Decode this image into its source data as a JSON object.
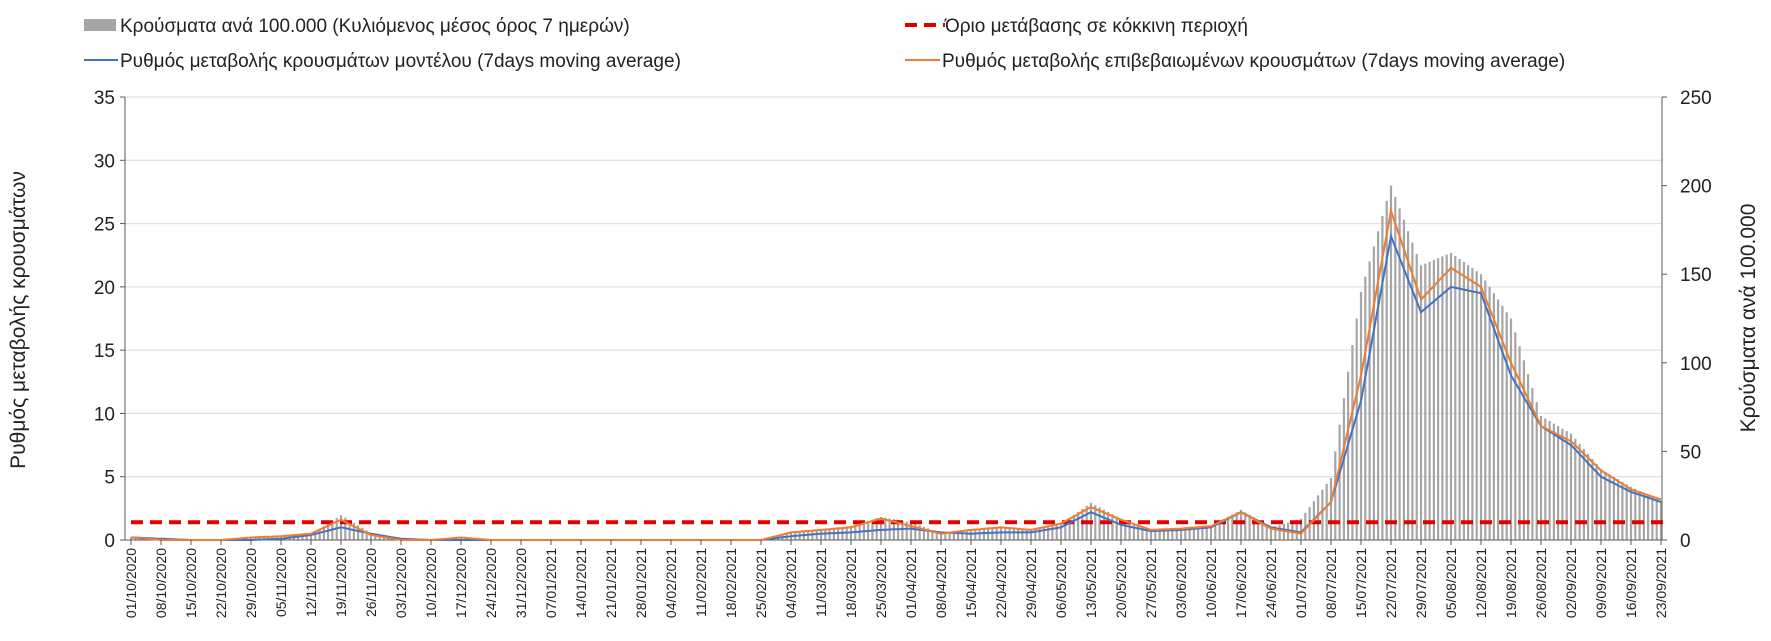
{
  "chart_data": {
    "type": "bar+line",
    "legend": {
      "items": [
        {
          "label": "Κρούσματα ανά 100.000 (Κυλιόμενος μέσος όρος 7 ημερών)",
          "kind": "bar",
          "color": "#a6a6a6"
        },
        {
          "label": "Όριο μετάβασης σε κόκκινη περιοχή",
          "kind": "dashed-line",
          "color": "#e00000"
        },
        {
          "label": "Ρυθμός μεταβολής κρουσμάτων μοντέλου (7days moving average)",
          "kind": "line",
          "color": "#4472c4"
        },
        {
          "label": "Ρυθμός μεταβολής επιβεβαιωμένων κρουσμάτων (7days moving average)",
          "kind": "line",
          "color": "#ed7d31"
        }
      ]
    },
    "y_left": {
      "label": "Ρυθμός μεταβολής κρουσμάτων",
      "min": 0,
      "max": 35,
      "ticks": [
        0,
        5,
        10,
        15,
        20,
        25,
        30,
        35
      ]
    },
    "y_right": {
      "label": "Κρούσματα ανά 100.000",
      "min": 0,
      "max": 250,
      "ticks": [
        0,
        50,
        100,
        150,
        200,
        250
      ]
    },
    "x_tick_labels": [
      "01/10/2020",
      "08/10/2020",
      "15/10/2020",
      "22/10/2020",
      "29/10/2020",
      "05/11/2020",
      "12/11/2020",
      "19/11/2020",
      "26/11/2020",
      "03/12/2020",
      "10/12/2020",
      "17/12/2020",
      "24/12/2020",
      "31/12/2020",
      "07/01/2021",
      "14/01/2021",
      "21/01/2021",
      "28/01/2021",
      "04/02/2021",
      "11/02/2021",
      "18/02/2021",
      "25/02/2021",
      "04/03/2021",
      "11/03/2021",
      "18/03/2021",
      "25/03/2021",
      "01/04/2021",
      "08/04/2021",
      "15/04/2021",
      "22/04/2021",
      "29/04/2021",
      "06/05/2021",
      "13/05/2021",
      "20/05/2021",
      "27/05/2021",
      "03/06/2021",
      "10/06/2021",
      "17/06/2021",
      "24/06/2021",
      "01/07/2021",
      "08/07/2021",
      "15/07/2021",
      "22/07/2021",
      "29/07/2021",
      "05/08/2021",
      "12/08/2021",
      "19/08/2021",
      "26/08/2021",
      "02/09/2021",
      "09/09/2021",
      "16/09/2021",
      "23/09/2021"
    ],
    "threshold_line": {
      "name": "Όριο μετάβασης σε κόκκινη περιοχή",
      "axis": "left",
      "value": 1.4
    },
    "series": [
      {
        "name": "Κρούσματα ανά 100.000 (Κυλιόμενος μέσος όρος 7 ημερών)",
        "type": "bar",
        "axis": "right",
        "color": "#a6a6a6",
        "weekly_values": [
          1.5,
          0.5,
          0.3,
          0.3,
          0.8,
          2.5,
          3,
          14,
          4,
          1,
          0,
          1,
          0,
          0,
          0,
          0,
          0,
          0,
          0,
          0,
          0,
          0,
          4,
          6,
          8,
          13,
          10,
          4,
          6,
          7,
          6,
          9,
          21,
          12,
          6,
          7,
          8,
          17,
          7,
          12,
          35,
          140,
          200,
          155,
          162,
          150,
          125,
          70,
          60,
          40,
          30,
          22
        ]
      },
      {
        "name": "Ρυθμός μεταβολής κρουσμάτων μοντέλου (7days moving average)",
        "type": "line",
        "axis": "left",
        "color": "#4472c4",
        "weekly_values": [
          0.2,
          0.1,
          0,
          0,
          0,
          0.1,
          0.4,
          1.0,
          0.5,
          0.1,
          0,
          0,
          0,
          0,
          0,
          0,
          0,
          0,
          0,
          0,
          0,
          0,
          0.3,
          0.5,
          0.6,
          0.8,
          0.9,
          0.6,
          0.5,
          0.6,
          0.6,
          1.0,
          2.2,
          1.2,
          0.7,
          0.8,
          1.0,
          2.2,
          1.0,
          0.6,
          3.0,
          11,
          24,
          18,
          20,
          19.5,
          13,
          9,
          7.5,
          5,
          3.8,
          3.0
        ]
      },
      {
        "name": "Ρυθμός μεταβολής επιβεβαιωμένων κρουσμάτων (7days moving average)",
        "type": "line",
        "axis": "left",
        "color": "#ed7d31",
        "weekly_values": [
          0.2,
          0,
          0,
          0,
          0.2,
          0.3,
          0.5,
          1.6,
          0.4,
          0,
          0,
          0.2,
          0,
          0,
          0,
          0,
          0,
          0,
          0,
          0,
          0,
          0,
          0.6,
          0.8,
          1.0,
          1.7,
          1.1,
          0.5,
          0.8,
          1.0,
          0.8,
          1.3,
          2.6,
          1.6,
          0.8,
          0.9,
          1.1,
          2.2,
          0.9,
          0.5,
          3.0,
          13,
          26,
          19,
          21.5,
          20,
          14,
          9,
          7.8,
          5.5,
          4.0,
          3.2
        ]
      }
    ]
  }
}
